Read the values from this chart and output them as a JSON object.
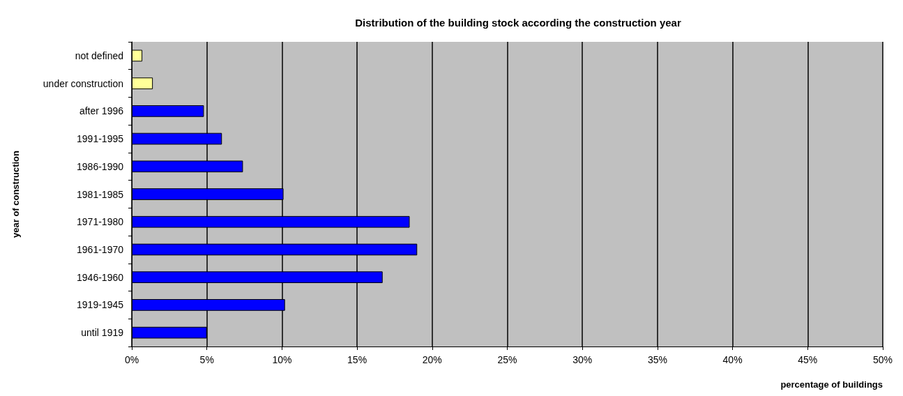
{
  "chart_data": {
    "type": "bar",
    "orientation": "horizontal",
    "title": "Distribution of the building stock according the construction year",
    "xlabel": "percentage of buildings",
    "ylabel": "year of construction",
    "categories": [
      "not defined",
      "under construction",
      "after 1996",
      "1991-1995",
      "1986-1990",
      "1981-1985",
      "1971-1980",
      "1961-1970",
      "1946-1960",
      "1919-1945",
      "until 1919"
    ],
    "values": [
      0.7,
      1.4,
      4.8,
      6.0,
      7.4,
      10.1,
      18.5,
      19.0,
      16.7,
      10.2,
      5.0
    ],
    "colors": [
      "#ffff99",
      "#ffff99",
      "#0000ff",
      "#0000ff",
      "#0000ff",
      "#0000ff",
      "#0000ff",
      "#0000ff",
      "#0000ff",
      "#0000ff",
      "#0000ff"
    ],
    "xlim": [
      0,
      50
    ],
    "xticks": [
      {
        "value": 0,
        "label": "0%"
      },
      {
        "value": 5,
        "label": "5%"
      },
      {
        "value": 10,
        "label": "10%"
      },
      {
        "value": 15,
        "label": "15%"
      },
      {
        "value": 20,
        "label": "20%"
      },
      {
        "value": 25,
        "label": "25%"
      },
      {
        "value": 30,
        "label": "30%"
      },
      {
        "value": 35,
        "label": "35%"
      },
      {
        "value": 40,
        "label": "40%"
      },
      {
        "value": 45,
        "label": "45%"
      },
      {
        "value": 50,
        "label": "50%"
      }
    ],
    "grid": "x"
  }
}
